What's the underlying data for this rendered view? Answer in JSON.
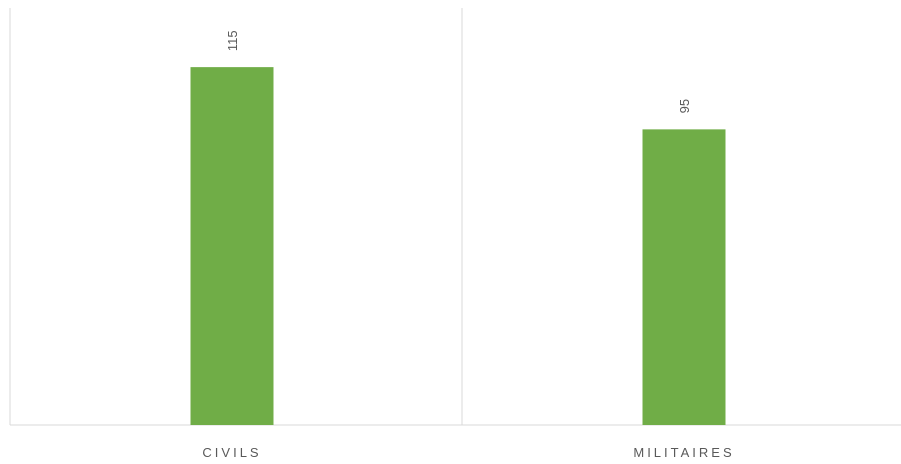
{
  "chart_data": {
    "type": "bar",
    "categories": [
      "CIVILS",
      "MILITAIRES"
    ],
    "values": [
      115,
      95
    ],
    "value_labels": [
      "115",
      "95"
    ],
    "title": "",
    "xlabel": "",
    "ylabel": "",
    "ylim": [
      0,
      134
    ],
    "grid": false,
    "legend": "none",
    "colors": {
      "bar": "#70ad47",
      "label_text": "#595959",
      "axis": "#d9d9d9"
    }
  }
}
